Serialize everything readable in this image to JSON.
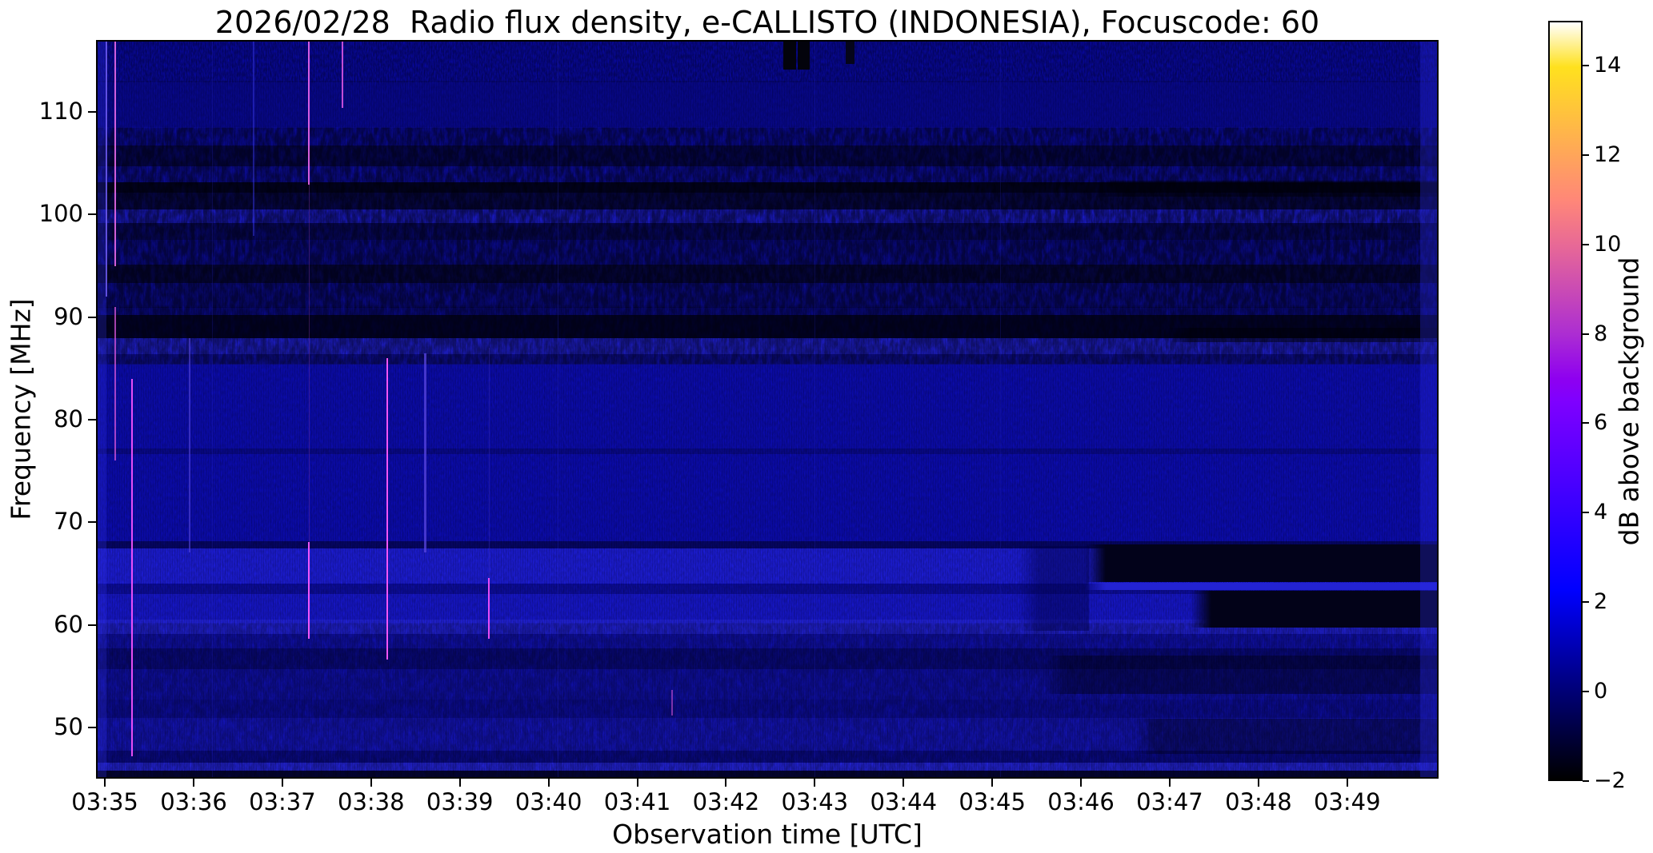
{
  "figure": {
    "title": "2026/02/28  Radio flux density, e-CALLISTO (INDONESIA), Focuscode: 60"
  },
  "chart_data": {
    "type": "heatmap",
    "title": "2026/02/28  Radio flux density, e-CALLISTO (INDONESIA), Focuscode: 60",
    "xlabel": "Observation time [UTC]",
    "ylabel": "Frequency [MHz]",
    "x_tick_labels": [
      "03:35",
      "03:36",
      "03:37",
      "03:38",
      "03:39",
      "03:40",
      "03:41",
      "03:42",
      "03:43",
      "03:44",
      "03:45",
      "03:46",
      "03:47",
      "03:48",
      "03:49"
    ],
    "x_tick_minutes": [
      35,
      36,
      37,
      38,
      39,
      40,
      41,
      42,
      43,
      44,
      45,
      46,
      47,
      48,
      49
    ],
    "x_range_minutes": [
      34.9,
      50.03
    ],
    "x_range_labels": [
      "03:34:54",
      "03:50:02"
    ],
    "y_ticks": [
      110,
      100,
      90,
      80,
      70,
      60,
      50
    ],
    "ylim": [
      45,
      117
    ],
    "grid": false,
    "legend": "none",
    "colorbar": {
      "label": "dB above background",
      "vmin": -2,
      "vmax": 15,
      "ticks": [
        {
          "v": 14,
          "label": "14"
        },
        {
          "v": 12,
          "label": "12"
        },
        {
          "v": 10,
          "label": "10"
        },
        {
          "v": 8,
          "label": "8"
        },
        {
          "v": 6,
          "label": "6"
        },
        {
          "v": 4,
          "label": "4"
        },
        {
          "v": 2,
          "label": "2"
        },
        {
          "v": 0,
          "label": "0"
        },
        {
          "v": -2,
          "label": "−2"
        }
      ],
      "colormap": "gnuplot2",
      "stops": [
        [
          0.0,
          "#000000"
        ],
        [
          0.06,
          "#00003d"
        ],
        [
          0.118,
          "#000078"
        ],
        [
          0.18,
          "#0000b8"
        ],
        [
          0.235,
          "#0000f0"
        ],
        [
          0.25,
          "#0000ff"
        ],
        [
          0.294,
          "#1600ff"
        ],
        [
          0.353,
          "#3500ff"
        ],
        [
          0.412,
          "#5300ff"
        ],
        [
          0.471,
          "#7000ff"
        ],
        [
          0.5,
          "#7f00ff"
        ],
        [
          0.529,
          "#8e00f0"
        ],
        [
          0.588,
          "#ac2dd2"
        ],
        [
          0.647,
          "#ca4bb4"
        ],
        [
          0.706,
          "#e86996"
        ],
        [
          0.765,
          "#ff8778"
        ],
        [
          0.824,
          "#ffa55a"
        ],
        [
          0.882,
          "#ffc33c"
        ],
        [
          0.941,
          "#ffe11e"
        ],
        [
          1.0,
          "#ffffff"
        ]
      ]
    },
    "bands": [
      [
        117,
        113.2,
        "#0909a2",
        "fine"
      ],
      [
        113.2,
        108.6,
        "#08088e",
        "fine"
      ],
      [
        108.6,
        106.8,
        "#0b0ba6",
        "mottle"
      ],
      [
        106.8,
        104.8,
        "#06065e",
        "mottle"
      ],
      [
        104.8,
        103.2,
        "#0d0da8",
        "mottle"
      ],
      [
        103.2,
        102.2,
        "#03032a",
        "mottle"
      ],
      [
        102.2,
        100.6,
        "#070752",
        "mottle"
      ],
      [
        100.6,
        99.2,
        "#1c1cd2",
        "mottle"
      ],
      [
        99.2,
        97.6,
        "#08086e",
        "mottle"
      ],
      [
        97.6,
        95.2,
        "#0b0b96",
        "mottle"
      ],
      [
        95.2,
        93.4,
        "#060648",
        "mottle"
      ],
      [
        93.4,
        91.2,
        "#0b0b92",
        "mottle"
      ],
      [
        91.2,
        90.2,
        "#0a0a8a",
        "mottle"
      ],
      [
        90.2,
        88.0,
        "#030330",
        "mottle"
      ],
      [
        88.0,
        86.4,
        "#2020d4",
        "combBright"
      ],
      [
        86.4,
        85.4,
        "#0e0e9a",
        "fine"
      ],
      [
        85.4,
        77.2,
        "#0c0cb0",
        "hatch"
      ],
      [
        77.2,
        76.6,
        "#09098c",
        "fine"
      ],
      [
        76.6,
        68.1,
        "#0c0cb2",
        "hatch"
      ],
      [
        68.1,
        67.4,
        "#060668",
        "fine"
      ],
      [
        67.4,
        63.9,
        "#1d1dd8",
        "combBright"
      ],
      [
        63.9,
        62.9,
        "#0d0d9e",
        "comb"
      ],
      [
        62.9,
        60.4,
        "#1717cc",
        "comb"
      ],
      [
        60.4,
        59.0,
        "#2222dc",
        "combBright"
      ],
      [
        59.0,
        57.6,
        "#1111b2",
        "comb"
      ],
      [
        57.6,
        55.6,
        "#0a0a84",
        "comb"
      ],
      [
        55.6,
        52.6,
        "#1010ae",
        "comb"
      ],
      [
        52.6,
        50.8,
        "#0d0da0",
        "comb"
      ],
      [
        50.8,
        47.6,
        "#1515c0",
        "comb"
      ],
      [
        47.6,
        46.4,
        "#0b0b90",
        "comb"
      ],
      [
        46.4,
        45.6,
        "#2525e2",
        "combBright"
      ],
      [
        45.6,
        45.0,
        "#05053a",
        "comb"
      ]
    ],
    "patches": [
      [
        42.65,
        42.79,
        117,
        114.3,
        "#03030c",
        0
      ],
      [
        42.81,
        42.94,
        117,
        114.3,
        "#03030c",
        0
      ],
      [
        43.35,
        43.45,
        117,
        114.8,
        "#05051a",
        0
      ],
      [
        45.3,
        46.1,
        67.6,
        59.3,
        "rgba(0,0,70,0.45)",
        1
      ],
      [
        46.05,
        50.03,
        67.8,
        64.1,
        "#02021a",
        1
      ],
      [
        47.25,
        50.03,
        63.2,
        59.6,
        "#020218",
        1
      ],
      [
        46.05,
        50.03,
        64.0,
        63.3,
        "#2323d2",
        1
      ],
      [
        45.6,
        50.03,
        56.9,
        53.1,
        "rgba(0,0,18,0.42)",
        1
      ],
      [
        46.6,
        50.03,
        50.7,
        47.3,
        "rgba(0,0,18,0.38)",
        1
      ],
      [
        46.2,
        50.03,
        103.4,
        101.8,
        "rgba(0,0,5,0.45)",
        1
      ],
      [
        47.0,
        50.03,
        89.0,
        87.6,
        "rgba(0,0,6,0.50)",
        1
      ],
      [
        49.84,
        50.03,
        117,
        45,
        "rgba(45,45,235,0.30)",
        0
      ],
      [
        34.9,
        35.0,
        117,
        45,
        "rgba(50,50,245,0.25)",
        0
      ]
    ],
    "rfi_lines": [
      [
        35.0,
        117,
        92,
        "#6f5cf5",
        2,
        0.85
      ],
      [
        35.1,
        117,
        95,
        "#e868e8",
        2,
        0.9
      ],
      [
        35.1,
        91,
        76,
        "#d955d9",
        2,
        0.75
      ],
      [
        35.29,
        84,
        47,
        "#ff55ff",
        2,
        0.9
      ],
      [
        35.94,
        88,
        67,
        "#5646dd",
        2,
        0.6
      ],
      [
        36.2,
        117,
        45,
        "#2a2ad0",
        1,
        0.2
      ],
      [
        36.66,
        117,
        98,
        "#3a3aee",
        2,
        0.45
      ],
      [
        37.29,
        117,
        103,
        "#ee66ee",
        2,
        0.9
      ],
      [
        37.29,
        103,
        68,
        "#a846cc",
        1,
        0.3
      ],
      [
        37.29,
        68,
        58.5,
        "#ff5aff",
        2,
        0.95
      ],
      [
        37.67,
        117,
        110.5,
        "#e55ae5",
        2,
        0.85
      ],
      [
        38.17,
        86,
        56.5,
        "#ff58ff",
        2,
        0.95
      ],
      [
        38.6,
        86.5,
        67,
        "#5946e0",
        3,
        0.75
      ],
      [
        39.32,
        64.5,
        58.5,
        "#ff52ff",
        2,
        0.9
      ],
      [
        39.32,
        87,
        64.5,
        "#4a3ad8",
        1,
        0.35
      ],
      [
        40.1,
        117,
        45,
        "#2a2ad0",
        1,
        0.25
      ],
      [
        41.39,
        53.5,
        51,
        "#dd55dd",
        2,
        0.55
      ],
      [
        43.0,
        117,
        45,
        "#2a2ad0",
        1,
        0.2
      ],
      [
        45.1,
        117,
        45,
        "#2a2ad0",
        1,
        0.2
      ]
    ]
  }
}
